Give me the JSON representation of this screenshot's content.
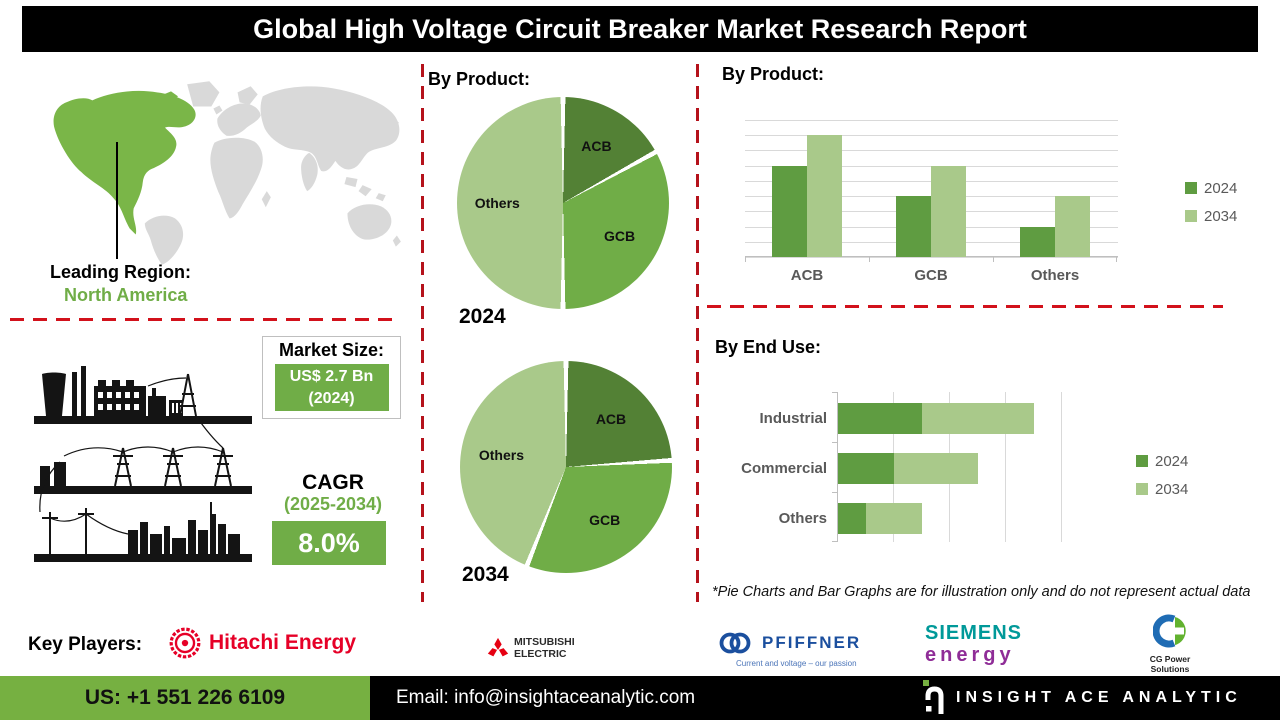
{
  "title": "Global High Voltage Circuit Breaker Market Research Report",
  "palette": {
    "dark_green": "#538135",
    "mid_green": "#70ad47",
    "green_2024": "#5f9c41",
    "light_green": "#a9c98a",
    "accent_green": "#70ad47",
    "footer_green": "#76b041",
    "map_green": "#7ab648",
    "map_gray": "#d9d9d9",
    "axis_gray": "#595959",
    "dash_red": "#b5121b",
    "hitachi_red": "#e60027",
    "mitsubishi_red": "#e60012",
    "pfiffner_blue": "#1b4f9e",
    "siemens_teal": "#009999",
    "siemens_purple": "#8f2d97",
    "cg_blue": "#1f6cb4",
    "cg_green": "#62b22f"
  },
  "leading_region": {
    "label": "Leading Region:",
    "value": "North America"
  },
  "market_size": {
    "label": "Market Size:",
    "value": "US$ 2.7 Bn",
    "year": "(2024)"
  },
  "cagr": {
    "label": "CAGR",
    "period": "(2025-2034)",
    "value": "8.0%"
  },
  "chart_data": [
    {
      "type": "pie",
      "title": "By Product:",
      "period_label": "2024",
      "slices": [
        {
          "label": "ACB",
          "value": 17,
          "color": "dark_green"
        },
        {
          "label": "GCB",
          "value": 33,
          "color": "mid_green"
        },
        {
          "label": "Others",
          "value": 50,
          "color": "light_green"
        }
      ]
    },
    {
      "type": "pie",
      "title": "By Product:",
      "period_label": "2034",
      "slices": [
        {
          "label": "ACB",
          "value": 24,
          "color": "dark_green"
        },
        {
          "label": "GCB",
          "value": 32,
          "color": "mid_green"
        },
        {
          "label": "Others",
          "value": 44,
          "color": "light_green"
        }
      ]
    },
    {
      "type": "bar",
      "title": "By Product:",
      "categories": [
        "ACB",
        "GCB",
        "Others"
      ],
      "series": [
        {
          "name": "2024",
          "color": "green_2024",
          "values": [
            6,
            4,
            2
          ]
        },
        {
          "name": "2034",
          "color": "light_green",
          "values": [
            8,
            6,
            4
          ]
        }
      ],
      "ylim": [
        0,
        9
      ],
      "gridlines": 10,
      "legend_position": "right"
    },
    {
      "type": "bar-horizontal-stacked",
      "title": "By End Use:",
      "categories": [
        "Industrial",
        "Commercial",
        "Others"
      ],
      "series": [
        {
          "name": "2024",
          "color": "green_2024",
          "values": [
            1.5,
            1,
            0.5
          ]
        },
        {
          "name": "2034",
          "color": "light_green",
          "values": [
            2,
            1.5,
            1
          ]
        }
      ],
      "xlim": [
        0,
        4
      ],
      "legend_position": "right"
    }
  ],
  "footnote": "*Pie Charts and Bar Graphs are for illustration only and do not represent actual data",
  "key_players": {
    "label": "Key Players:",
    "companies": [
      {
        "name": "Hitachi Energy"
      },
      {
        "name": "MITSUBISHI ELECTRIC",
        "line1": "MITSUBISHI",
        "line2": "ELECTRIC"
      },
      {
        "name": "PFIFFNER",
        "tagline": "Current and voltage – our passion"
      },
      {
        "name": "SIEMENS",
        "sub": "energy"
      },
      {
        "name": "CG Power Solutions"
      }
    ]
  },
  "footer": {
    "phone": "US: +1 551 226 6109",
    "email": "Email: info@insightaceanalytic.com",
    "brand": "INSIGHT ACE ANALYTIC"
  }
}
